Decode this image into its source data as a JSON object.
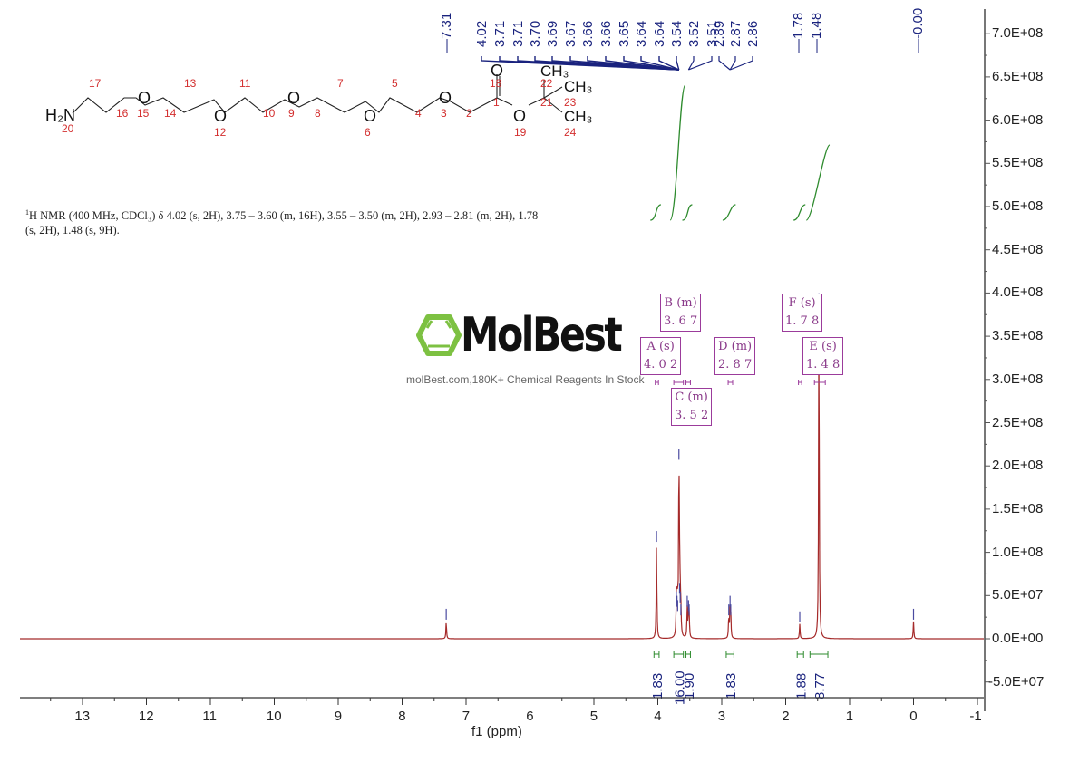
{
  "chart_data": {
    "type": "line",
    "title": "1H NMR spectrum",
    "xlabel": "f1 (ppm)",
    "ylabel": "",
    "xlim": [
      13.9,
      -1.1
    ],
    "ylim": [
      -70000000.0,
      720000000.0
    ],
    "x_reversed": true,
    "grid": false,
    "x_ticks": [
      "13",
      "12",
      "11",
      "10",
      "9",
      "8",
      "7",
      "6",
      "5",
      "4",
      "3",
      "2",
      "1",
      "0",
      "-1"
    ],
    "y_ticks": [
      "7.0E+08",
      "6.5E+08",
      "6.0E+08",
      "5.5E+08",
      "5.0E+08",
      "4.5E+08",
      "4.0E+08",
      "3.5E+08",
      "3.0E+08",
      "2.5E+08",
      "2.0E+08",
      "1.5E+08",
      "1.0E+08",
      "5.0E+07",
      "0.0E+00",
      "-5.0E+07"
    ],
    "y_axis_position": "right",
    "spectrum_color": "#a52a2a",
    "peaks": [
      {
        "ppm": 7.31,
        "intensity": 20000000.0
      },
      {
        "ppm": 4.02,
        "intensity": 110000000.0
      },
      {
        "ppm": 3.71,
        "intensity": 40000000.0
      },
      {
        "ppm": 3.7,
        "intensity": 35000000.0
      },
      {
        "ppm": 3.69,
        "intensity": 30000000.0
      },
      {
        "ppm": 3.67,
        "intensity": 205000000.0
      },
      {
        "ppm": 3.66,
        "intensity": 50000000.0
      },
      {
        "ppm": 3.65,
        "intensity": 40000000.0
      },
      {
        "ppm": 3.64,
        "intensity": 25000000.0
      },
      {
        "ppm": 3.54,
        "intensity": 35000000.0
      },
      {
        "ppm": 3.52,
        "intensity": 30000000.0
      },
      {
        "ppm": 3.51,
        "intensity": 25000000.0
      },
      {
        "ppm": 2.89,
        "intensity": 25000000.0
      },
      {
        "ppm": 2.87,
        "intensity": 35000000.0
      },
      {
        "ppm": 2.86,
        "intensity": 25000000.0
      },
      {
        "ppm": 1.78,
        "intensity": 17000000.0
      },
      {
        "ppm": 1.48,
        "intensity": 385000000.0
      },
      {
        "ppm": 0.0,
        "intensity": 20000000.0
      }
    ],
    "peak_labels": [
      "7.31",
      "4.02",
      "3.71",
      "3.71",
      "3.70",
      "3.69",
      "3.67",
      "3.66",
      "3.66",
      "3.65",
      "3.64",
      "3.64",
      "3.54",
      "3.52",
      "3.51",
      "2.89",
      "2.87",
      "2.86",
      "1.78",
      "1.48",
      "-0.00"
    ],
    "integrals": [
      {
        "range": [
          4.06,
          3.98
        ],
        "value": "1.83"
      },
      {
        "range": [
          3.75,
          3.6
        ],
        "value": "16.00"
      },
      {
        "range": [
          3.56,
          3.49
        ],
        "value": "1.90"
      },
      {
        "range": [
          2.93,
          2.81
        ],
        "value": "1.83"
      },
      {
        "range": [
          1.82,
          1.72
        ],
        "value": "1.88"
      },
      {
        "range": [
          1.62,
          1.34
        ],
        "value": "8.77"
      }
    ],
    "multiplets": [
      {
        "id": "A",
        "type": "s",
        "shift": "4.02"
      },
      {
        "id": "B",
        "type": "m",
        "shift": "3.67"
      },
      {
        "id": "C",
        "type": "m",
        "shift": "3.52"
      },
      {
        "id": "D",
        "type": "m",
        "shift": "2.87"
      },
      {
        "id": "E",
        "type": "s",
        "shift": "1.48"
      },
      {
        "id": "F",
        "type": "s",
        "shift": "1.78"
      }
    ]
  },
  "description": {
    "nucleus_sup": "1",
    "text": "H NMR (400 MHz, CDCl₃) δ 4.02 (s, 2H), 3.75 – 3.60 (m, 16H), 3.55 – 3.50 (m, 2H), 2.93 – 2.81 (m, 2H), 1.78 (s, 2H), 1.48 (s, 9H)."
  },
  "molecule": {
    "amine_label": "H₂N",
    "atoms": [
      "20",
      "17",
      "16",
      "15",
      "14",
      "13",
      "12",
      "11",
      "10",
      "9",
      "8",
      "7",
      "6",
      "5",
      "4",
      "3",
      "2",
      "1",
      "18",
      "19",
      "21",
      "22",
      "23",
      "24"
    ],
    "o_label": "O",
    "ch3_label": "CH₃"
  },
  "watermark": {
    "brand": "MolBest",
    "tagline": "molBest.com,180K+ Chemical Reagents In Stock"
  },
  "colors": {
    "spectrum": "#a52a2a",
    "peak_labels": "#1a237e",
    "integrals": "#2e8b2e",
    "multiplet_boxes": "#9b3b9b",
    "atom_numbers": "#d32f2f",
    "logo_green": "#7dc142"
  }
}
